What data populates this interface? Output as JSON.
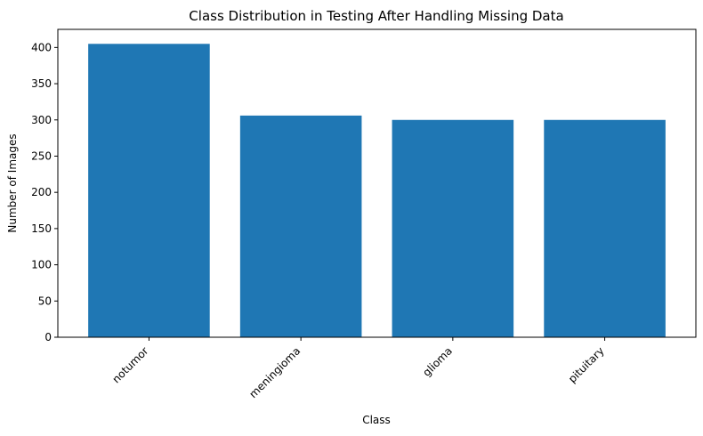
{
  "chart_data": {
    "type": "bar",
    "title": "Class Distribution in Testing After Handling Missing Data",
    "xlabel": "Class",
    "ylabel": "Number of Images",
    "categories": [
      "notumor",
      "meningioma",
      "glioma",
      "pituitary"
    ],
    "values": [
      405,
      306,
      300,
      300
    ],
    "ylim": [
      0,
      425
    ],
    "yticks": [
      0,
      50,
      100,
      150,
      200,
      250,
      300,
      350,
      400
    ],
    "bar_color": "#1f77b4",
    "x_tick_rotation": 45,
    "grid": false,
    "legend": "none"
  }
}
